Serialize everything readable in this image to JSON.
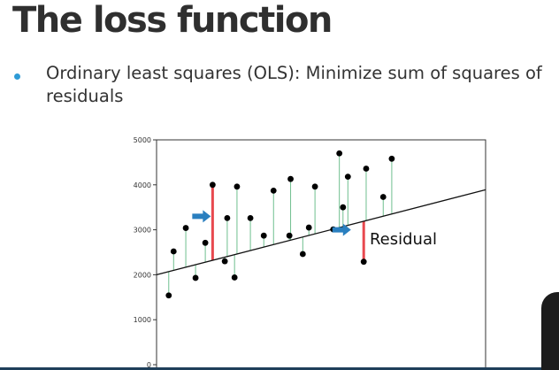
{
  "slide": {
    "title": "The loss function",
    "bullet": "Ordinary least squares (OLS): Minimize sum of squares of residuals"
  },
  "colors": {
    "accent": "#2e9bd6",
    "residual_line": "#6fbf8f",
    "highlight": "#e8494f",
    "arrow": "#2a7fbf"
  },
  "chart_data": {
    "type": "scatter",
    "title": "",
    "xlabel": "",
    "ylabel": "",
    "ylim": [
      0,
      5000
    ],
    "xlim": [
      0,
      27
    ],
    "yticks": [
      0,
      1000,
      2000,
      3000,
      4000,
      5000
    ],
    "grid": false,
    "regression_line": {
      "intercept": 2000,
      "slope": 70
    },
    "points": [
      {
        "x": 1.0,
        "y": 1540
      },
      {
        "x": 1.4,
        "y": 2520
      },
      {
        "x": 2.4,
        "y": 3040
      },
      {
        "x": 3.2,
        "y": 1930
      },
      {
        "x": 4.0,
        "y": 2710
      },
      {
        "x": 4.6,
        "y": 4000
      },
      {
        "x": 5.6,
        "y": 2300
      },
      {
        "x": 5.8,
        "y": 3260
      },
      {
        "x": 6.4,
        "y": 1940
      },
      {
        "x": 6.6,
        "y": 3960
      },
      {
        "x": 7.7,
        "y": 3260
      },
      {
        "x": 8.8,
        "y": 2870
      },
      {
        "x": 9.6,
        "y": 3870
      },
      {
        "x": 10.9,
        "y": 2870
      },
      {
        "x": 11.0,
        "y": 4130
      },
      {
        "x": 12.0,
        "y": 2460
      },
      {
        "x": 12.5,
        "y": 3050
      },
      {
        "x": 13.0,
        "y": 3960
      },
      {
        "x": 14.5,
        "y": 3010
      },
      {
        "x": 15.0,
        "y": 4700
      },
      {
        "x": 15.3,
        "y": 3500
      },
      {
        "x": 15.7,
        "y": 4180
      },
      {
        "x": 17.0,
        "y": 2290
      },
      {
        "x": 17.2,
        "y": 4360
      },
      {
        "x": 18.6,
        "y": 3730
      },
      {
        "x": 19.3,
        "y": 4580
      }
    ],
    "highlighted_residuals": [
      4.6,
      17.0
    ],
    "annotations": [
      {
        "text": "Residual",
        "x": 17.2,
        "y": 2800
      }
    ],
    "arrows": [
      {
        "x": 3.8,
        "y": 3300
      },
      {
        "x": 15.3,
        "y": 3000
      }
    ]
  }
}
